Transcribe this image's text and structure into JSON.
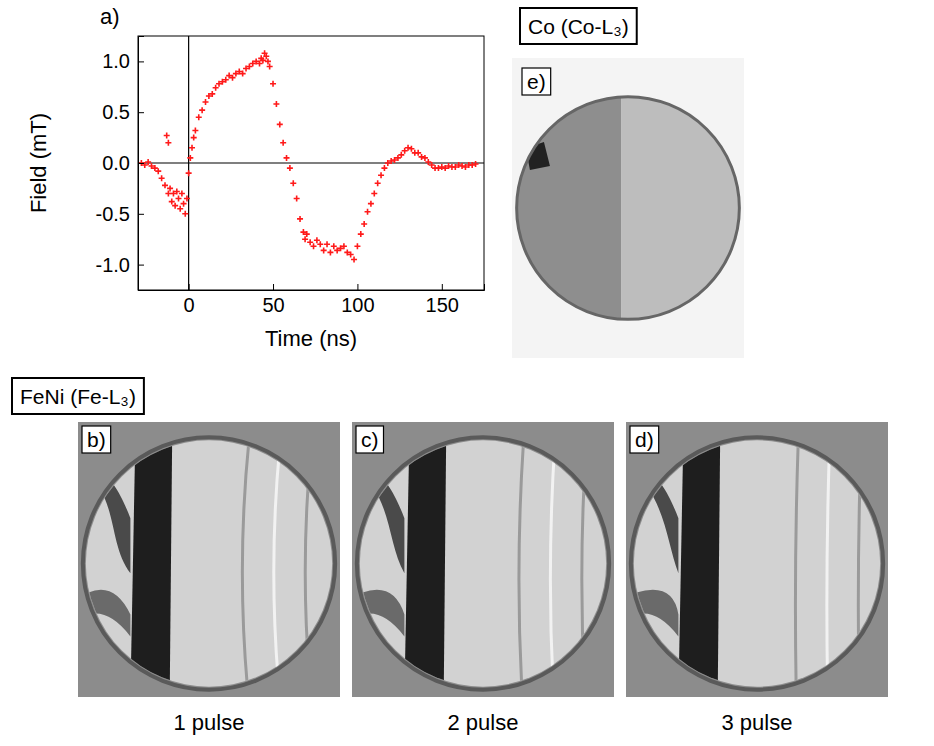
{
  "chart_data": {
    "type": "scatter",
    "panel_label": "a)",
    "x_label": "Time (ns)",
    "y_label": "Field (mT)",
    "color": "#ff1a1a",
    "marker": "plus",
    "x": [
      -28,
      -26,
      -24,
      -22,
      -20,
      -18,
      -16,
      -14,
      -13,
      -12,
      -12,
      -11,
      -10,
      -9,
      -8,
      -7,
      -6,
      -5,
      -4,
      -3,
      -2,
      -1,
      0,
      1,
      2,
      3,
      4,
      6,
      8,
      10,
      12,
      14,
      16,
      18,
      20,
      22,
      24,
      26,
      28,
      30,
      32,
      34,
      36,
      38,
      40,
      42,
      43,
      44,
      45,
      46,
      47,
      48,
      50,
      52,
      54,
      56,
      58,
      60,
      62,
      64,
      66,
      68,
      69,
      70,
      72,
      74,
      76,
      78,
      80,
      82,
      84,
      86,
      88,
      90,
      92,
      94,
      96,
      98,
      100,
      102,
      104,
      106,
      108,
      110,
      112,
      114,
      116,
      118,
      120,
      122,
      124,
      126,
      128,
      130,
      132,
      134,
      136,
      138,
      140,
      142,
      144,
      146,
      148,
      150,
      152,
      154,
      156,
      158,
      160,
      162,
      164,
      166,
      168,
      170
    ],
    "values": [
      0.0,
      -0.02,
      0.01,
      -0.03,
      -0.05,
      -0.08,
      -0.15,
      -0.22,
      0.27,
      0.2,
      -0.3,
      -0.25,
      -0.38,
      -0.3,
      -0.42,
      -0.28,
      -0.35,
      -0.45,
      -0.3,
      -0.4,
      -0.5,
      -0.35,
      -0.1,
      0.05,
      0.15,
      0.25,
      0.32,
      0.45,
      0.52,
      0.6,
      0.66,
      0.68,
      0.74,
      0.78,
      0.8,
      0.82,
      0.86,
      0.84,
      0.88,
      0.9,
      0.88,
      0.93,
      0.95,
      0.98,
      1.0,
      0.98,
      1.03,
      1.01,
      1.08,
      1.05,
      1.0,
      0.95,
      0.78,
      0.58,
      0.38,
      0.2,
      0.05,
      -0.05,
      -0.2,
      -0.35,
      -0.55,
      -0.68,
      -0.75,
      -0.7,
      -0.78,
      -0.82,
      -0.76,
      -0.8,
      -0.86,
      -0.8,
      -0.88,
      -0.82,
      -0.86,
      -0.84,
      -0.82,
      -0.88,
      -0.9,
      -0.95,
      -0.82,
      -0.7,
      -0.6,
      -0.48,
      -0.4,
      -0.3,
      -0.2,
      -0.12,
      -0.05,
      0.0,
      0.02,
      0.03,
      0.05,
      0.08,
      0.12,
      0.15,
      0.14,
      0.1,
      0.1,
      0.06,
      0.05,
      0.01,
      -0.02,
      -0.05,
      -0.05,
      -0.04,
      -0.05,
      -0.03,
      -0.04,
      -0.04,
      -0.02,
      -0.03,
      -0.04,
      -0.02,
      -0.02,
      -0.01
    ],
    "xlim": [
      -30,
      175
    ],
    "ylim": [
      -1.25,
      1.25
    ],
    "xticks": [
      0,
      50,
      100,
      150
    ],
    "yticks": [
      {
        "value": -1.0,
        "label": "-1.0"
      },
      {
        "value": -0.5,
        "label": "-0.5"
      },
      {
        "value": 0.0,
        "label": "0.0"
      },
      0.5,
      {
        "value": 1.0,
        "label": "1.0"
      }
    ],
    "grid": false
  },
  "images": {
    "groups": [
      {
        "title": "FeNi (Fe-L₃)",
        "panels": [
          {
            "letter": "b)",
            "caption": "1 pulse"
          },
          {
            "letter": "c)",
            "caption": "2 pulse"
          },
          {
            "letter": "d)",
            "caption": "3 pulse"
          }
        ]
      },
      {
        "title": "Co (Co-L₃)",
        "panels": [
          {
            "letter": "e)"
          }
        ]
      }
    ]
  }
}
